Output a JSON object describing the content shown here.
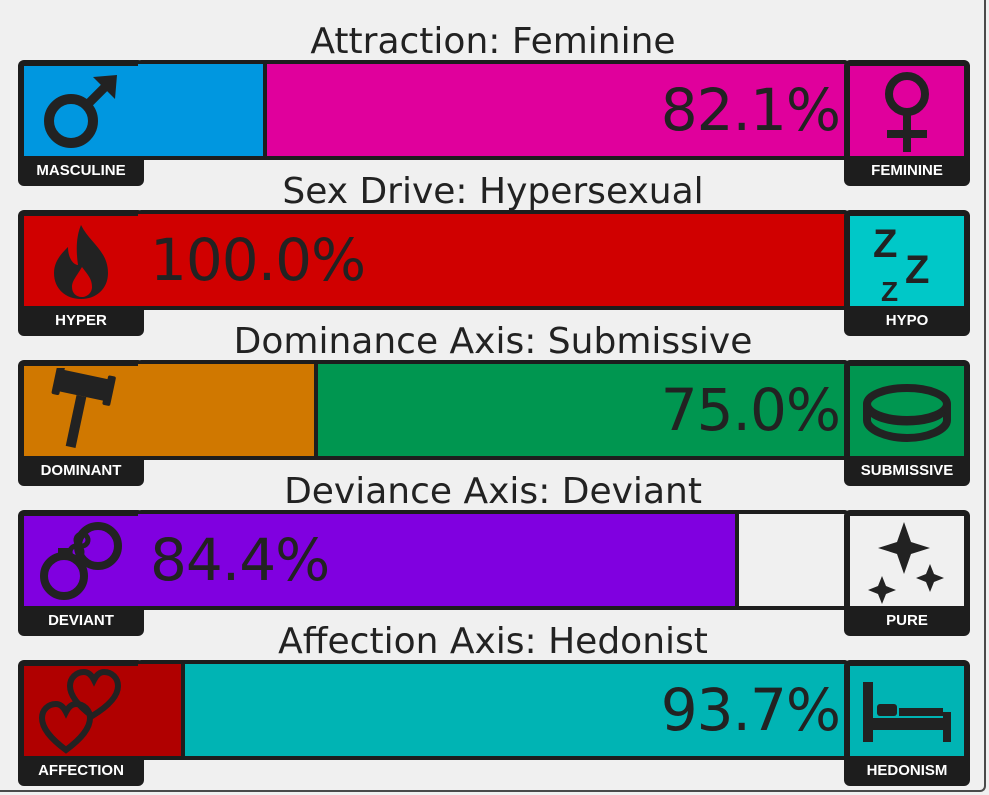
{
  "axes": [
    {
      "title": "Attraction: Feminine",
      "percent_label": "82.1%",
      "percent_side": "right",
      "value": 0.821,
      "favored_side": "right",
      "left": {
        "label": "MASCULINE",
        "icon": "male-symbol-icon",
        "color": "#0097e0"
      },
      "right": {
        "label": "FEMININE",
        "icon": "female-symbol-icon",
        "color": "#e0009c"
      }
    },
    {
      "title": "Sex Drive: Hypersexual",
      "percent_label": "100.0%",
      "percent_side": "left",
      "value": 1.0,
      "favored_side": "left",
      "left": {
        "label": "HYPER",
        "icon": "fire-icon",
        "color": "#d00000"
      },
      "right": {
        "label": "HYPO",
        "icon": "sleep-zzz-icon",
        "color": "#00c8c8"
      }
    },
    {
      "title": "Dominance Axis: Submissive",
      "percent_label": "75.0%",
      "percent_side": "right",
      "value": 0.75,
      "favored_side": "right",
      "left": {
        "label": "DOMINANT",
        "icon": "gavel-icon",
        "color": "#d07800"
      },
      "right": {
        "label": "SUBMISSIVE",
        "icon": "collar-icon",
        "color": "#009650"
      }
    },
    {
      "title": "Deviance Axis: Deviant",
      "percent_label": "84.4%",
      "percent_side": "left",
      "value": 0.844,
      "favored_side": "left",
      "left": {
        "label": "DEVIANT",
        "icon": "handcuffs-icon",
        "color": "#8000e0"
      },
      "right": {
        "label": "PURE",
        "icon": "sparkles-icon",
        "color": "#f0f0f0"
      }
    },
    {
      "title": "Affection Axis: Hedonist",
      "percent_label": "93.7%",
      "percent_side": "right",
      "value": 0.937,
      "favored_side": "right",
      "left": {
        "label": "AFFECTION",
        "icon": "hearts-icon",
        "color": "#b00000"
      },
      "right": {
        "label": "HEDONISM",
        "icon": "bed-icon",
        "color": "#00b4b4"
      }
    }
  ]
}
